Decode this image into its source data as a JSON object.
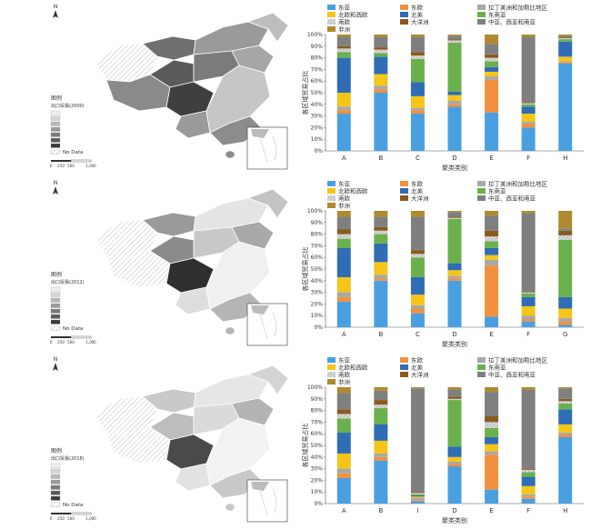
{
  "legend_names": {
    "east_asia": "东亚",
    "east_europe": "东欧",
    "latin_america": "拉丁美洲和加勒比地区",
    "north_west_europe": "北欧和西欧",
    "north_america": "北美",
    "south_east_asia": "东南亚",
    "south_europe": "南欧",
    "oceania": "大洋洲",
    "central_west_south_asia": "中亚、西亚和南亚",
    "africa": "非洲"
  },
  "colors": {
    "east_asia": "#4a9fe0",
    "east_europe": "#f2913d",
    "latin_america": "#a8a8a8",
    "north_west_europe": "#f5c518",
    "north_america": "#2f6db5",
    "south_east_asia": "#6ab04c",
    "south_europe": "#c9c9c9",
    "oceania": "#8a5a1e",
    "central_west_south_asia": "#7f7f7f",
    "africa": "#b08a2e"
  },
  "map": {
    "north_label": "N",
    "legend_title": "图例",
    "nodata": "No Data",
    "scale_labels": [
      "0",
      "250",
      "500",
      "1,000"
    ],
    "panels": [
      {
        "subtitle": "出口贸易(2000)"
      },
      {
        "subtitle": "出口贸易(2012)"
      },
      {
        "subtitle": "出口贸易(2018)"
      }
    ]
  },
  "chart_data": [
    {
      "type": "bar",
      "stacked": true,
      "xlabel": "聚类类别",
      "ylabel": "各区域贸易占比",
      "ylim": [
        0,
        100
      ],
      "yticks": [
        "0%",
        "10%",
        "20%",
        "30%",
        "40%",
        "50%",
        "60%",
        "70%",
        "80%",
        "90%",
        "100%"
      ],
      "categories": [
        "A",
        "B",
        "C",
        "D",
        "E",
        "F",
        "H"
      ],
      "series": [
        {
          "name": "东亚",
          "key": "east_asia",
          "values": [
            32,
            50,
            32,
            38,
            33,
            20,
            75
          ]
        },
        {
          "name": "东欧",
          "key": "east_europe",
          "values": [
            3,
            3,
            3,
            2,
            28,
            3,
            1
          ]
        },
        {
          "name": "拉丁美洲和加勒比地区",
          "key": "latin_america",
          "values": [
            3,
            3,
            2,
            3,
            3,
            2,
            1
          ]
        },
        {
          "name": "北欧和西欧",
          "key": "north_west_europe",
          "values": [
            12,
            10,
            10,
            5,
            4,
            7,
            4
          ]
        },
        {
          "name": "北美",
          "key": "north_america",
          "values": [
            30,
            15,
            12,
            3,
            4,
            6,
            13
          ]
        },
        {
          "name": "东南亚",
          "key": "south_east_asia",
          "values": [
            5,
            3,
            20,
            42,
            5,
            2,
            2
          ]
        },
        {
          "name": "南欧",
          "key": "south_europe",
          "values": [
            3,
            3,
            3,
            2,
            3,
            1,
            1
          ]
        },
        {
          "name": "大洋洲",
          "key": "oceania",
          "values": [
            2,
            2,
            3,
            1,
            3,
            1,
            1
          ]
        },
        {
          "name": "中亚、西亚和南亚",
          "key": "central_west_south_asia",
          "values": [
            8,
            9,
            13,
            3,
            9,
            56,
            1
          ]
        },
        {
          "name": "非洲",
          "key": "africa",
          "values": [
            2,
            2,
            2,
            1,
            8,
            2,
            1
          ]
        }
      ]
    },
    {
      "type": "bar",
      "stacked": true,
      "xlabel": "聚类类别",
      "ylabel": "各区域贸易占比",
      "ylim": [
        0,
        100
      ],
      "yticks": [
        "0%",
        "10%",
        "20%",
        "30%",
        "40%",
        "50%",
        "60%",
        "70%",
        "80%",
        "90%",
        "100%"
      ],
      "categories": [
        "A",
        "B",
        "C",
        "D",
        "E",
        "F",
        "G"
      ],
      "series": [
        {
          "name": "东亚",
          "key": "east_asia",
          "values": [
            22,
            40,
            12,
            40,
            9,
            5,
            2
          ]
        },
        {
          "name": "东欧",
          "key": "east_europe",
          "values": [
            4,
            2,
            4,
            2,
            44,
            2,
            3
          ]
        },
        {
          "name": "拉丁美洲和加勒比地区",
          "key": "latin_america",
          "values": [
            4,
            3,
            3,
            2,
            5,
            3,
            3
          ]
        },
        {
          "name": "北欧和西欧",
          "key": "north_west_europe",
          "values": [
            13,
            11,
            9,
            5,
            4,
            8,
            8
          ]
        },
        {
          "name": "北美",
          "key": "north_america",
          "values": [
            25,
            16,
            15,
            6,
            6,
            8,
            10
          ]
        },
        {
          "name": "东南亚",
          "key": "south_east_asia",
          "values": [
            8,
            8,
            17,
            38,
            6,
            3,
            49
          ]
        },
        {
          "name": "南欧",
          "key": "south_europe",
          "values": [
            4,
            3,
            3,
            1,
            4,
            1,
            4
          ]
        },
        {
          "name": "大洋洲",
          "key": "oceania",
          "values": [
            4,
            3,
            3,
            1,
            5,
            1,
            4
          ]
        },
        {
          "name": "中亚、西亚和南亚",
          "key": "central_west_south_asia",
          "values": [
            11,
            9,
            29,
            4,
            13,
            67,
            2
          ]
        },
        {
          "name": "非洲",
          "key": "africa",
          "values": [
            5,
            5,
            5,
            1,
            4,
            2,
            15
          ]
        }
      ]
    },
    {
      "type": "bar",
      "stacked": true,
      "xlabel": "聚类类别",
      "ylabel": "各区域贸易占比",
      "ylim": [
        0,
        100
      ],
      "yticks": [
        "0%",
        "10%",
        "20%",
        "30%",
        "40%",
        "50%",
        "60%",
        "70%",
        "80%",
        "90%",
        "100%"
      ],
      "categories": [
        "A",
        "B",
        "I",
        "D",
        "E",
        "F",
        "H"
      ],
      "series": [
        {
          "name": "东亚",
          "key": "east_asia",
          "values": [
            22,
            37,
            2,
            32,
            12,
            4,
            57
          ]
        },
        {
          "name": "东欧",
          "key": "east_europe",
          "values": [
            4,
            3,
            1,
            2,
            30,
            2,
            2
          ]
        },
        {
          "name": "拉丁美洲和加勒比地区",
          "key": "latin_america",
          "values": [
            4,
            3,
            2,
            2,
            3,
            2,
            2
          ]
        },
        {
          "name": "北欧和西欧",
          "key": "north_west_europe",
          "values": [
            13,
            11,
            1,
            4,
            6,
            7,
            7
          ]
        },
        {
          "name": "北美",
          "key": "north_america",
          "values": [
            18,
            14,
            1,
            9,
            6,
            8,
            13
          ]
        },
        {
          "name": "东南亚",
          "key": "south_east_asia",
          "values": [
            12,
            14,
            1,
            40,
            8,
            4,
            5
          ]
        },
        {
          "name": "南欧",
          "key": "south_europe",
          "values": [
            4,
            3,
            1,
            1,
            5,
            2,
            2
          ]
        },
        {
          "name": "大洋洲",
          "key": "oceania",
          "values": [
            4,
            4,
            1,
            2,
            5,
            1,
            2
          ]
        },
        {
          "name": "中亚、西亚和南亚",
          "key": "central_west_south_asia",
          "values": [
            14,
            8,
            89,
            6,
            21,
            68,
            9
          ]
        },
        {
          "name": "非洲",
          "key": "africa",
          "values": [
            5,
            3,
            1,
            2,
            4,
            2,
            1
          ]
        }
      ]
    }
  ]
}
